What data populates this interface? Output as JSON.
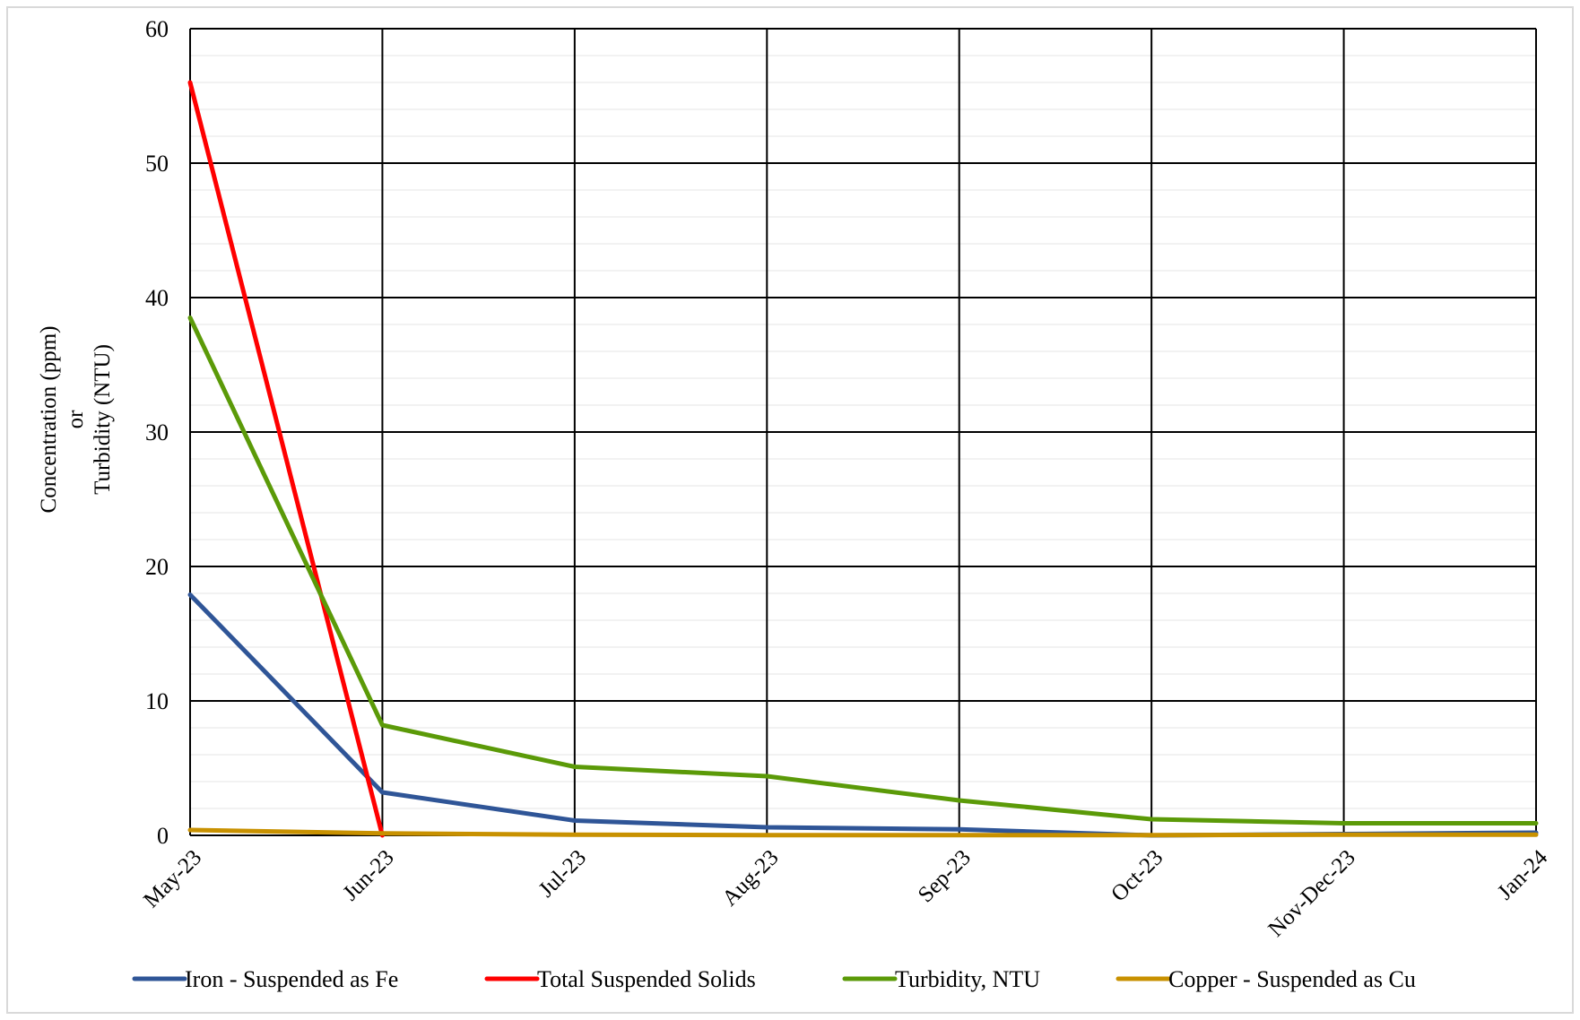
{
  "chart_data": {
    "type": "line",
    "title": "",
    "xlabel": "",
    "ylabel_lines": [
      "Concentration (ppm)",
      "or",
      "Turbidity (NTU)"
    ],
    "categories": [
      "May-23",
      "Jun-23",
      "Jul-23",
      "Aug-23",
      "Sep-23",
      "Oct-23",
      "Nov-Dec-23",
      "Jan-24"
    ],
    "ylim": [
      0,
      60
    ],
    "yticks": [
      0,
      10,
      20,
      30,
      40,
      50,
      60
    ],
    "grid": true,
    "legend_position": "bottom",
    "series": [
      {
        "name": "Iron - Suspended as Fe",
        "color": "#2F5597",
        "values": [
          17.9,
          3.2,
          1.1,
          0.6,
          0.45,
          0.0,
          0.1,
          0.2
        ]
      },
      {
        "name": "Total Suspended Solids",
        "color": "#FF0000",
        "values": [
          56.0,
          0.0,
          null,
          null,
          null,
          null,
          null,
          null
        ]
      },
      {
        "name": "Turbidity, NTU",
        "color": "#5B9A08",
        "values": [
          38.5,
          8.2,
          5.1,
          4.4,
          2.6,
          1.2,
          0.9,
          0.9
        ]
      },
      {
        "name": "Copper - Suspended as Cu",
        "color": "#C89100",
        "values": [
          0.4,
          0.15,
          0.05,
          0.02,
          0.02,
          0.02,
          0.05,
          0.05
        ]
      }
    ]
  }
}
